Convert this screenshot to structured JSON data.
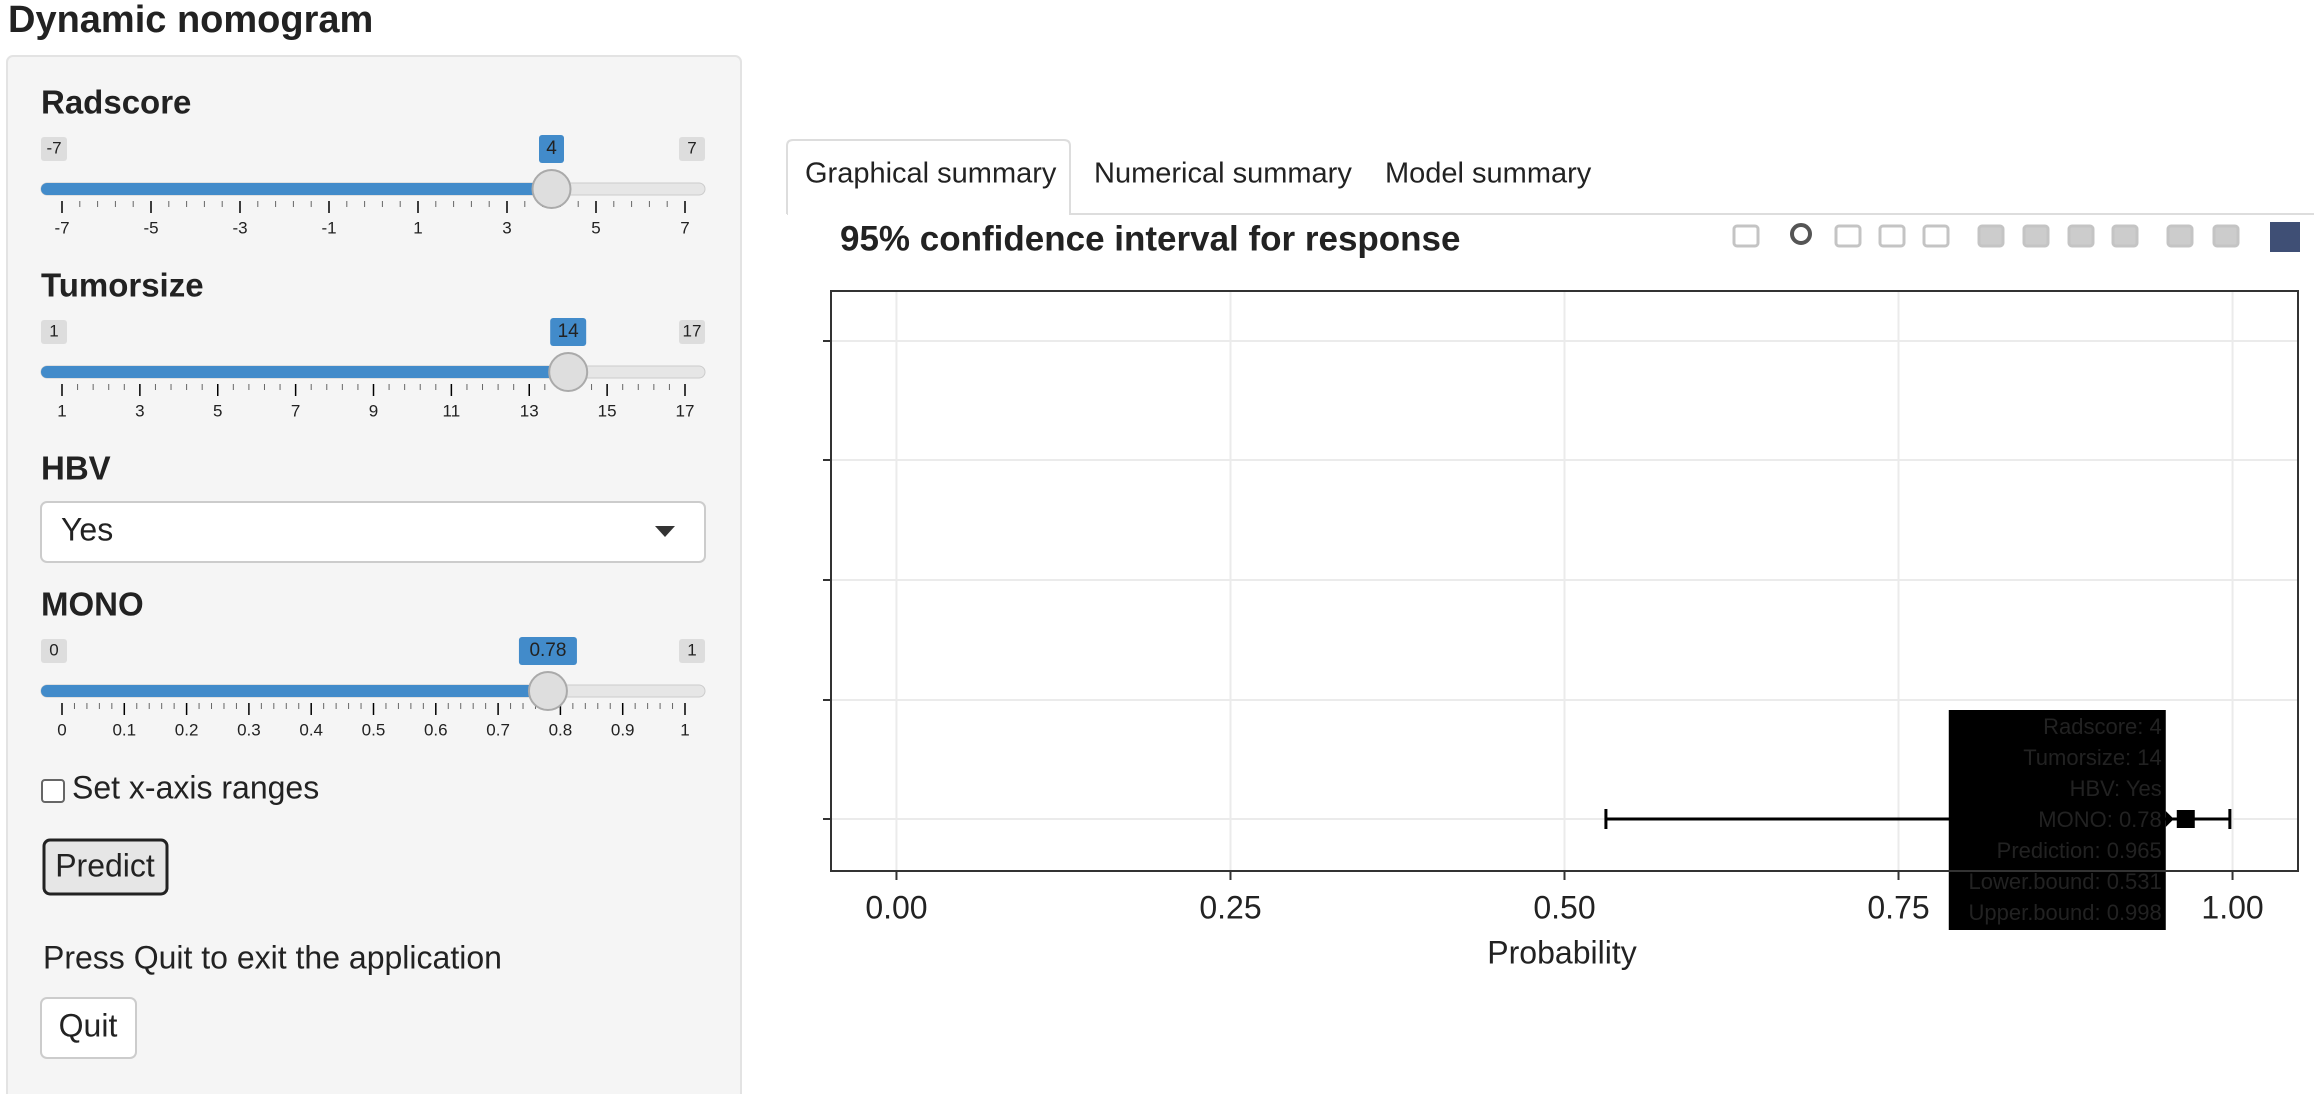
{
  "header": {
    "title": "Dynamic nomogram"
  },
  "sidebar": {
    "sliders": [
      {
        "label": "Radscore",
        "min": -7,
        "max": 7,
        "value": 4,
        "ticks": [
          -7,
          -5,
          -3,
          -1,
          1,
          3,
          5,
          7
        ]
      },
      {
        "label": "Tumorsize",
        "min": 1,
        "max": 17,
        "value": 14,
        "ticks": [
          1,
          3,
          5,
          7,
          9,
          11,
          13,
          15,
          17
        ]
      },
      {
        "label": "MONO",
        "min": 0,
        "max": 1,
        "value": 0.78,
        "ticks": [
          0,
          0.1,
          0.2,
          0.3,
          0.4,
          0.5,
          0.6,
          0.7,
          0.8,
          0.9,
          1
        ]
      }
    ],
    "select": {
      "label": "HBV",
      "value": "Yes"
    },
    "checkbox": {
      "label": "Set x-axis ranges"
    },
    "predict_button": "Predict",
    "quit_text": "Press Quit to exit the application",
    "quit_button": "Quit"
  },
  "tabs": [
    "Graphical summary",
    "Numerical summary",
    "Model summary"
  ],
  "plot": {
    "title": "95% confidence interval for response",
    "xlabel": "Probability",
    "xlim": [
      -0.049,
      1.049
    ],
    "xticks": [
      {
        "value": 0,
        "label": "0.00"
      },
      {
        "value": 0.25,
        "label": "0.25"
      },
      {
        "value": 0.5,
        "label": "0.50"
      },
      {
        "value": 0.75,
        "label": "0.75"
      },
      {
        "value": 1,
        "label": "1.00"
      }
    ],
    "prediction": 0.965,
    "lower": 0.531,
    "upper": 0.998,
    "tooltip": [
      "Radscore: 4",
      "Tumorsize: 14",
      "HBV: Yes",
      "MONO: 0.78",
      "Prediction: 0.965",
      "Lower.bound: 0.531",
      "Upper.bound: 0.998"
    ]
  }
}
